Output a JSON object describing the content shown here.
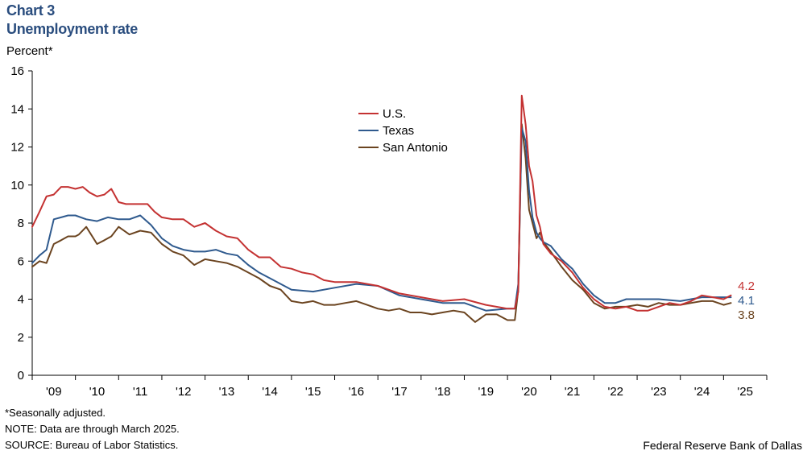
{
  "header": {
    "chart_number": "Chart 3",
    "title": "Unemployment rate",
    "unit": "Percent*"
  },
  "footer": {
    "footnote": "*Seasonally adjusted.",
    "note": "NOTE: Data are through March 2025.",
    "source": "SOURCE: Bureau of Labor Statistics.",
    "credit": "Federal Reserve Bank of Dallas"
  },
  "colors": {
    "US": "#c43232",
    "Texas": "#2f5a8e",
    "San Antonio": "#6b4420",
    "title": "#2a4d7e"
  },
  "chart_data": {
    "type": "line",
    "title": "Unemployment rate",
    "ylabel": "Percent*",
    "xlabel": "",
    "ylim": [
      0,
      16
    ],
    "yticks": [
      0,
      2,
      4,
      6,
      8,
      10,
      12,
      14,
      16
    ],
    "xlim": [
      2009.0,
      2026.0
    ],
    "xtick_labels": [
      "'09",
      "'10",
      "'11",
      "'12",
      "'13",
      "'14",
      "'15",
      "'16",
      "'17",
      "'18",
      "'19",
      "'20",
      "'21",
      "'22",
      "'23",
      "'24",
      "'25"
    ],
    "grid": false,
    "legend_position": "center-top",
    "series": [
      {
        "name": "U.S.",
        "end_label": "4.2",
        "x": [
          2009.0,
          2009.17,
          2009.33,
          2009.5,
          2009.67,
          2009.83,
          2010.0,
          2010.17,
          2010.33,
          2010.5,
          2010.67,
          2010.83,
          2011.0,
          2011.17,
          2011.33,
          2011.5,
          2011.67,
          2011.83,
          2012.0,
          2012.25,
          2012.5,
          2012.75,
          2013.0,
          2013.25,
          2013.5,
          2013.75,
          2014.0,
          2014.25,
          2014.5,
          2014.75,
          2015.0,
          2015.25,
          2015.5,
          2015.75,
          2016.0,
          2016.5,
          2017.0,
          2017.5,
          2018.0,
          2018.5,
          2019.0,
          2019.5,
          2020.0,
          2020.17,
          2020.25,
          2020.33,
          2020.42,
          2020.5,
          2020.58,
          2020.67,
          2020.75,
          2020.83,
          2021.0,
          2021.25,
          2021.5,
          2021.75,
          2022.0,
          2022.25,
          2022.5,
          2022.75,
          2023.0,
          2023.25,
          2023.5,
          2023.75,
          2024.0,
          2024.25,
          2024.5,
          2024.75,
          2025.0,
          2025.17
        ],
        "y": [
          7.8,
          8.6,
          9.4,
          9.5,
          9.9,
          9.9,
          9.8,
          9.9,
          9.6,
          9.4,
          9.5,
          9.8,
          9.1,
          9.0,
          9.0,
          9.0,
          9.0,
          8.6,
          8.3,
          8.2,
          8.2,
          7.8,
          8.0,
          7.6,
          7.3,
          7.2,
          6.6,
          6.2,
          6.2,
          5.7,
          5.6,
          5.4,
          5.3,
          5.0,
          4.9,
          4.9,
          4.7,
          4.3,
          4.1,
          3.9,
          4.0,
          3.7,
          3.5,
          3.5,
          4.4,
          14.7,
          13.2,
          11.0,
          10.2,
          8.4,
          7.8,
          6.9,
          6.4,
          6.0,
          5.4,
          4.6,
          4.0,
          3.6,
          3.5,
          3.6,
          3.4,
          3.4,
          3.6,
          3.8,
          3.7,
          3.9,
          4.2,
          4.1,
          4.0,
          4.2
        ]
      },
      {
        "name": "Texas",
        "end_label": "4.1",
        "x": [
          2009.0,
          2009.17,
          2009.33,
          2009.5,
          2009.67,
          2009.83,
          2010.0,
          2010.25,
          2010.5,
          2010.75,
          2011.0,
          2011.25,
          2011.5,
          2011.75,
          2012.0,
          2012.25,
          2012.5,
          2012.75,
          2013.0,
          2013.25,
          2013.5,
          2013.75,
          2014.0,
          2014.25,
          2014.5,
          2014.75,
          2015.0,
          2015.5,
          2016.0,
          2016.5,
          2017.0,
          2017.5,
          2018.0,
          2018.5,
          2019.0,
          2019.5,
          2020.0,
          2020.17,
          2020.25,
          2020.33,
          2020.42,
          2020.5,
          2020.58,
          2020.67,
          2020.75,
          2020.83,
          2021.0,
          2021.25,
          2021.5,
          2021.75,
          2022.0,
          2022.25,
          2022.5,
          2022.75,
          2023.0,
          2023.5,
          2024.0,
          2024.5,
          2025.0,
          2025.17
        ],
        "y": [
          5.9,
          6.3,
          6.6,
          8.2,
          8.3,
          8.4,
          8.4,
          8.2,
          8.1,
          8.3,
          8.2,
          8.2,
          8.4,
          7.9,
          7.2,
          6.8,
          6.6,
          6.5,
          6.5,
          6.6,
          6.4,
          6.3,
          5.8,
          5.4,
          5.1,
          4.8,
          4.5,
          4.4,
          4.6,
          4.8,
          4.7,
          4.2,
          4.0,
          3.8,
          3.8,
          3.4,
          3.5,
          3.5,
          4.8,
          13.0,
          12.3,
          9.7,
          8.3,
          7.5,
          7.2,
          7.0,
          6.8,
          6.1,
          5.6,
          4.8,
          4.2,
          3.8,
          3.8,
          4.0,
          4.0,
          4.0,
          3.9,
          4.1,
          4.1,
          4.1
        ]
      },
      {
        "name": "San Antonio",
        "end_label": "3.8",
        "x": [
          2009.0,
          2009.17,
          2009.33,
          2009.5,
          2009.67,
          2009.83,
          2010.0,
          2010.08,
          2010.25,
          2010.5,
          2010.67,
          2010.83,
          2011.0,
          2011.25,
          2011.5,
          2011.75,
          2012.0,
          2012.25,
          2012.5,
          2012.75,
          2013.0,
          2013.25,
          2013.5,
          2013.75,
          2014.0,
          2014.25,
          2014.5,
          2014.75,
          2015.0,
          2015.25,
          2015.5,
          2015.75,
          2016.0,
          2016.25,
          2016.5,
          2016.75,
          2017.0,
          2017.25,
          2017.5,
          2017.75,
          2018.0,
          2018.25,
          2018.5,
          2018.75,
          2019.0,
          2019.25,
          2019.5,
          2019.75,
          2020.0,
          2020.17,
          2020.25,
          2020.33,
          2020.42,
          2020.5,
          2020.58,
          2020.67,
          2020.75,
          2020.83,
          2021.0,
          2021.25,
          2021.5,
          2021.75,
          2022.0,
          2022.25,
          2022.5,
          2022.75,
          2023.0,
          2023.25,
          2023.5,
          2023.75,
          2024.0,
          2024.25,
          2024.5,
          2024.75,
          2025.0,
          2025.17
        ],
        "y": [
          5.7,
          6.0,
          5.9,
          6.9,
          7.1,
          7.3,
          7.3,
          7.4,
          7.8,
          6.9,
          7.1,
          7.3,
          7.8,
          7.4,
          7.6,
          7.5,
          6.9,
          6.5,
          6.3,
          5.8,
          6.1,
          6.0,
          5.9,
          5.7,
          5.4,
          5.1,
          4.7,
          4.5,
          3.9,
          3.8,
          3.9,
          3.7,
          3.7,
          3.8,
          3.9,
          3.7,
          3.5,
          3.4,
          3.5,
          3.3,
          3.3,
          3.2,
          3.3,
          3.4,
          3.3,
          2.8,
          3.2,
          3.2,
          2.9,
          2.9,
          4.5,
          13.2,
          11.4,
          8.7,
          8.0,
          7.2,
          7.5,
          7.0,
          6.5,
          5.7,
          5.0,
          4.5,
          3.8,
          3.5,
          3.6,
          3.6,
          3.7,
          3.6,
          3.8,
          3.7,
          3.7,
          3.8,
          3.9,
          3.9,
          3.7,
          3.8
        ]
      }
    ]
  }
}
